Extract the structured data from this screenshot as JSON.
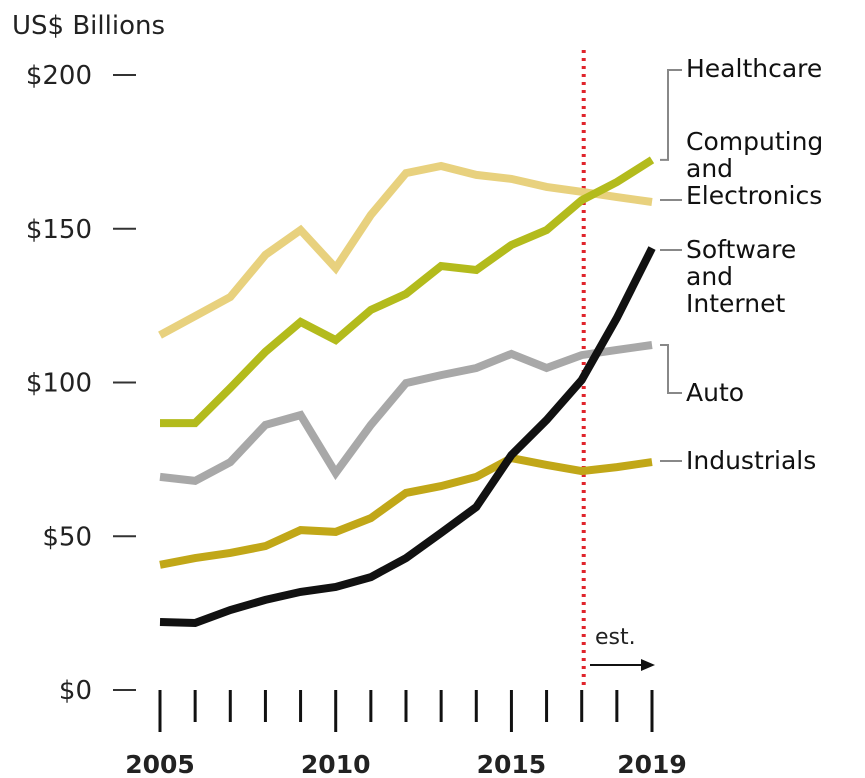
{
  "chart_data": {
    "type": "line",
    "y_label": "US$ Billions",
    "x": [
      2005,
      2006,
      2007,
      2008,
      2009,
      2010,
      2011,
      2012,
      2013,
      2014,
      2015,
      2016,
      2017,
      2018,
      2019
    ],
    "xlim": [
      2005,
      2019
    ],
    "xticks": [
      2005,
      2010,
      2015,
      2019
    ],
    "ylim": [
      0,
      200
    ],
    "yticks": [
      {
        "value": 0,
        "label": "$0"
      },
      {
        "value": 50,
        "label": "$50"
      },
      {
        "value": 100,
        "label": "$100"
      },
      {
        "value": 150,
        "label": "$150"
      },
      {
        "value": 200,
        "label": "$200"
      }
    ],
    "annotation": {
      "text": "est.",
      "x": 2017
    },
    "series": [
      {
        "name": "Healthcare",
        "color": "#b3bb1c",
        "values": [
          86.8,
          86.8,
          98.2,
          110,
          119.7,
          113.8,
          123.6,
          128.8,
          137.9,
          136.6,
          144.7,
          149.6,
          159.3,
          165.2,
          172.4
        ]
      },
      {
        "name": "Computing and Electronics",
        "color": "#e8d17e",
        "values": [
          115.4,
          121.6,
          127.8,
          141.5,
          149.6,
          137.2,
          154.5,
          168.1,
          170.4,
          167.5,
          166.2,
          163.6,
          162,
          160.3,
          158.7
        ]
      },
      {
        "name": "Software and Internet",
        "color": "#111111",
        "values": [
          22.1,
          21.8,
          26,
          29.3,
          31.9,
          33.5,
          36.7,
          42.9,
          51.1,
          59.5,
          76.4,
          87.8,
          100.8,
          121,
          143.7
        ]
      },
      {
        "name": "Auto",
        "color": "#a8a8a8",
        "values": [
          69.3,
          68,
          74.1,
          86.2,
          89.4,
          70.6,
          86.2,
          99.8,
          102.4,
          104.7,
          109.3,
          104.7,
          108.9,
          110.6,
          112.2
        ]
      },
      {
        "name": "Industrials",
        "color": "#c1a718",
        "values": [
          40.7,
          42.9,
          44.6,
          46.8,
          52,
          51.4,
          55.9,
          64.1,
          66.3,
          69.3,
          75.4,
          73.2,
          71.2,
          72.5,
          74.1
        ]
      }
    ]
  }
}
